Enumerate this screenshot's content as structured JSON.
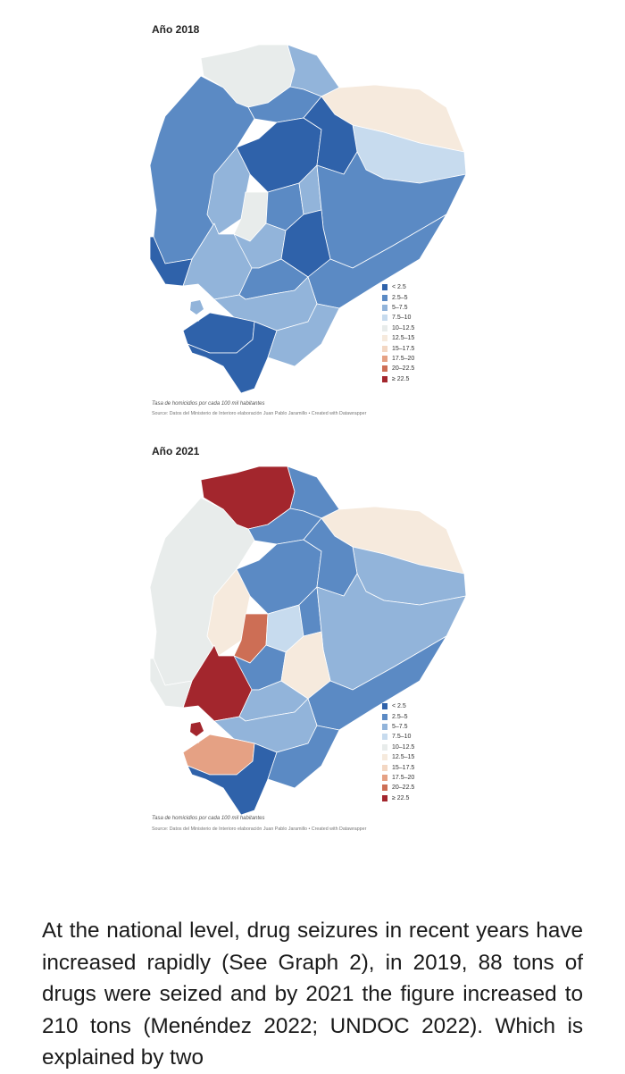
{
  "legend_items": [
    {
      "label": "< 2.5",
      "color": "#2f62aa"
    },
    {
      "label": "2.5–5",
      "color": "#5b8ac4"
    },
    {
      "label": "5–7.5",
      "color": "#92b4da"
    },
    {
      "label": "7.5–10",
      "color": "#c7dbee"
    },
    {
      "label": "10–12.5",
      "color": "#e8eceb"
    },
    {
      "label": "12.5–15",
      "color": "#f6eadd"
    },
    {
      "label": "15–17.5",
      "color": "#f3d7c3"
    },
    {
      "label": "17.5–20",
      "color": "#e5a184"
    },
    {
      "label": "20–22.5",
      "color": "#cd6e55"
    },
    {
      "label": "≥ 22.5",
      "color": "#a3262d"
    }
  ],
  "maps": [
    {
      "title": "Año 2018",
      "caption": "Tasa de homicidios por cada 100 mil habitantes",
      "source": "Source: Datos del Ministerio de Interioro elaboración Juan Pablo Jaramillo • Created with Datawrapper",
      "provinces": {
        "esmeraldas": 4,
        "carchi": 2,
        "imbabura": 1,
        "sucumbios": 5,
        "orellana": 3,
        "pichincha": 0,
        "napo": 0,
        "manabi": 1,
        "santo_domingo": 2,
        "los_rios": 4,
        "cotopaxi": 1,
        "tungurahua": 2,
        "pastaza": 1,
        "guayas": 2,
        "santa_elena": 0,
        "bolivar": 2,
        "chimborazo": 0,
        "morona": 1,
        "canar": 1,
        "azuay": 2,
        "el_oro": 0,
        "loja": 0,
        "zamora": 2
      }
    },
    {
      "title": "Año 2021",
      "caption": "Tasa de homicidios por cada 100 mil habitantes",
      "source": "Source: Datos del Ministerio de Interioro elaboración Juan Pablo Jaramillo • Created with Datawrapper",
      "provinces": {
        "esmeraldas": 9,
        "carchi": 1,
        "imbabura": 1,
        "sucumbios": 5,
        "orellana": 2,
        "pichincha": 1,
        "napo": 1,
        "manabi": 4,
        "santo_domingo": 5,
        "los_rios": 8,
        "cotopaxi": 3,
        "tungurahua": 1,
        "pastaza": 2,
        "guayas": 9,
        "santa_elena": 4,
        "bolivar": 1,
        "chimborazo": 5,
        "morona": 1,
        "canar": 2,
        "azuay": 2,
        "el_oro": 7,
        "loja": 0,
        "zamora": 1
      }
    }
  ],
  "paragraph": "At the national level, drug seizures in recent years have increased rapidly (See Graph 2), in 2019, 88 tons of drugs were seized and by 2021 the figure increased to 210 tons (Menéndez 2022; UNDOC 2022). Which is explained by two"
}
